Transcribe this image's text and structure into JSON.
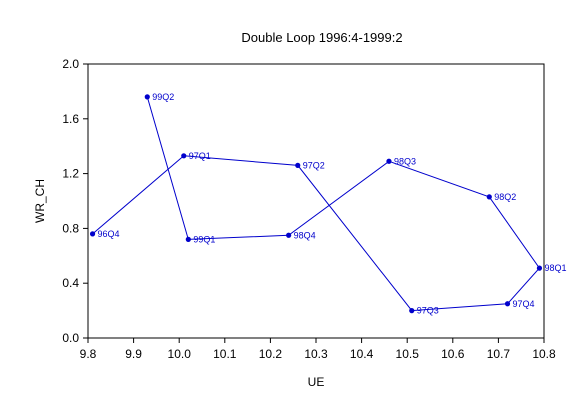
{
  "chart_data": {
    "type": "line",
    "title": "Double Loop 1996:4-1999:2",
    "xlabel": "UE",
    "ylabel": "WR_CH",
    "xlim": [
      9.8,
      10.8
    ],
    "ylim": [
      0.0,
      2.0
    ],
    "x_ticks": [
      "9.8",
      "9.9",
      "10.0",
      "10.1",
      "10.2",
      "10.3",
      "10.4",
      "10.5",
      "10.6",
      "10.7",
      "10.8"
    ],
    "y_ticks": [
      "0.0",
      "0.4",
      "0.8",
      "1.2",
      "1.6",
      "2.0"
    ],
    "grid": false,
    "line_color": "#0000cc",
    "series": [
      {
        "points": [
          {
            "label": "96Q4",
            "x": 9.81,
            "y": 0.76
          },
          {
            "label": "97Q1",
            "x": 10.01,
            "y": 1.33
          },
          {
            "label": "97Q2",
            "x": 10.26,
            "y": 1.26
          },
          {
            "label": "97Q3",
            "x": 10.51,
            "y": 0.2
          },
          {
            "label": "97Q4",
            "x": 10.72,
            "y": 0.25
          },
          {
            "label": "98Q1",
            "x": 10.79,
            "y": 0.51
          },
          {
            "label": "98Q2",
            "x": 10.68,
            "y": 1.03
          },
          {
            "label": "98Q3",
            "x": 10.46,
            "y": 1.29
          },
          {
            "label": "98Q4",
            "x": 10.24,
            "y": 0.75
          },
          {
            "label": "99Q1",
            "x": 10.02,
            "y": 0.72
          },
          {
            "label": "99Q2",
            "x": 9.93,
            "y": 1.76
          }
        ]
      }
    ]
  }
}
